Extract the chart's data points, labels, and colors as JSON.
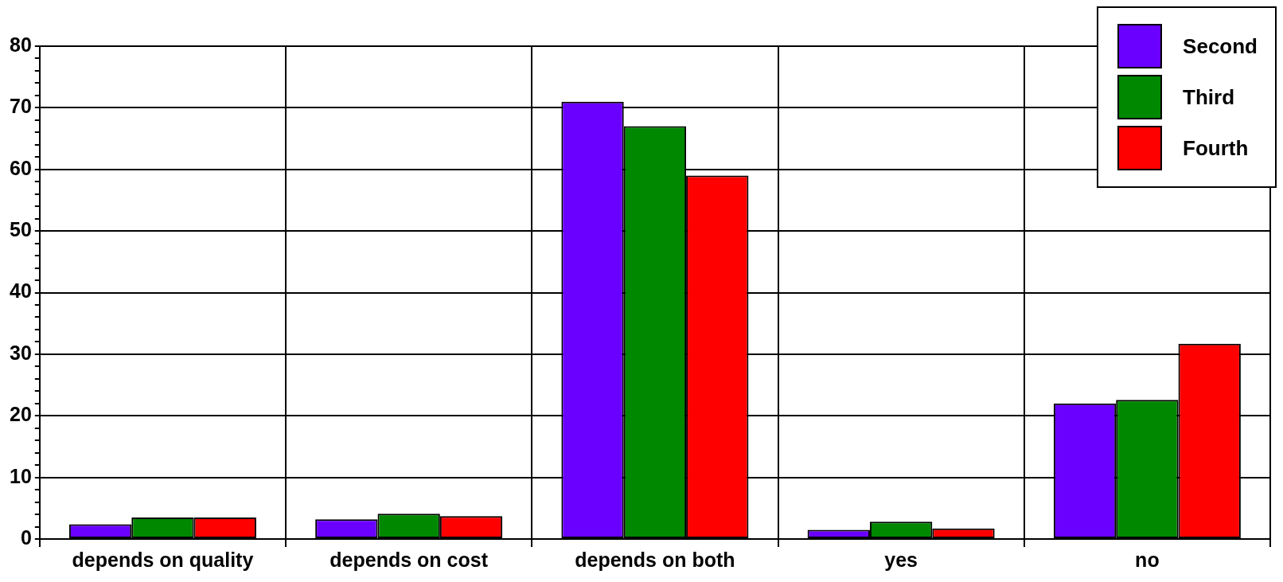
{
  "chart_data": {
    "type": "bar",
    "categories": [
      "depends on quality",
      "depends on cost",
      "depends on both",
      "yes",
      "no"
    ],
    "series": [
      {
        "name": "Second",
        "color": "#6a00ff",
        "values": [
          2.4,
          3.2,
          71,
          1.5,
          22
        ]
      },
      {
        "name": "Third",
        "color": "#008800",
        "values": [
          3.5,
          4.1,
          67,
          2.8,
          22.6
        ]
      },
      {
        "name": "Fourth",
        "color": "#ff0000",
        "values": [
          3.5,
          3.7,
          59,
          1.7,
          31.7
        ]
      }
    ],
    "ylim": [
      0,
      80
    ],
    "yticks": [
      0,
      {
        "value": 2,
        "label": null
      },
      {
        "value": 4,
        "label": null
      },
      {
        "value": 6,
        "label": null
      },
      {
        "value": 8,
        "label": null
      },
      10,
      {
        "value": 12,
        "label": null
      },
      {
        "value": 14,
        "label": null
      },
      {
        "value": 16,
        "label": null
      },
      {
        "value": 18,
        "label": null
      },
      20,
      {
        "value": 22,
        "label": null
      },
      {
        "value": 24,
        "label": null
      },
      {
        "value": 26,
        "label": null
      },
      {
        "value": 28,
        "label": null
      },
      30,
      {
        "value": 32,
        "label": null
      },
      {
        "value": 34,
        "label": null
      },
      {
        "value": 36,
        "label": null
      },
      {
        "value": 38,
        "label": null
      },
      40,
      {
        "value": 42,
        "label": null
      },
      {
        "value": 44,
        "label": null
      },
      {
        "value": 46,
        "label": null
      },
      {
        "value": 48,
        "label": null
      },
      50,
      {
        "value": 52,
        "label": null
      },
      {
        "value": 54,
        "label": null
      },
      {
        "value": 56,
        "label": null
      },
      {
        "value": 58,
        "label": null
      },
      60,
      {
        "value": 62,
        "label": null
      },
      {
        "value": 64,
        "label": null
      },
      {
        "value": 66,
        "label": null
      },
      {
        "value": 68,
        "label": null
      },
      70,
      {
        "value": 72,
        "label": null
      },
      {
        "value": 74,
        "label": null
      },
      {
        "value": 76,
        "label": null
      },
      {
        "value": 78,
        "label": null
      },
      80
    ],
    "grid": true,
    "legend": "top right"
  }
}
